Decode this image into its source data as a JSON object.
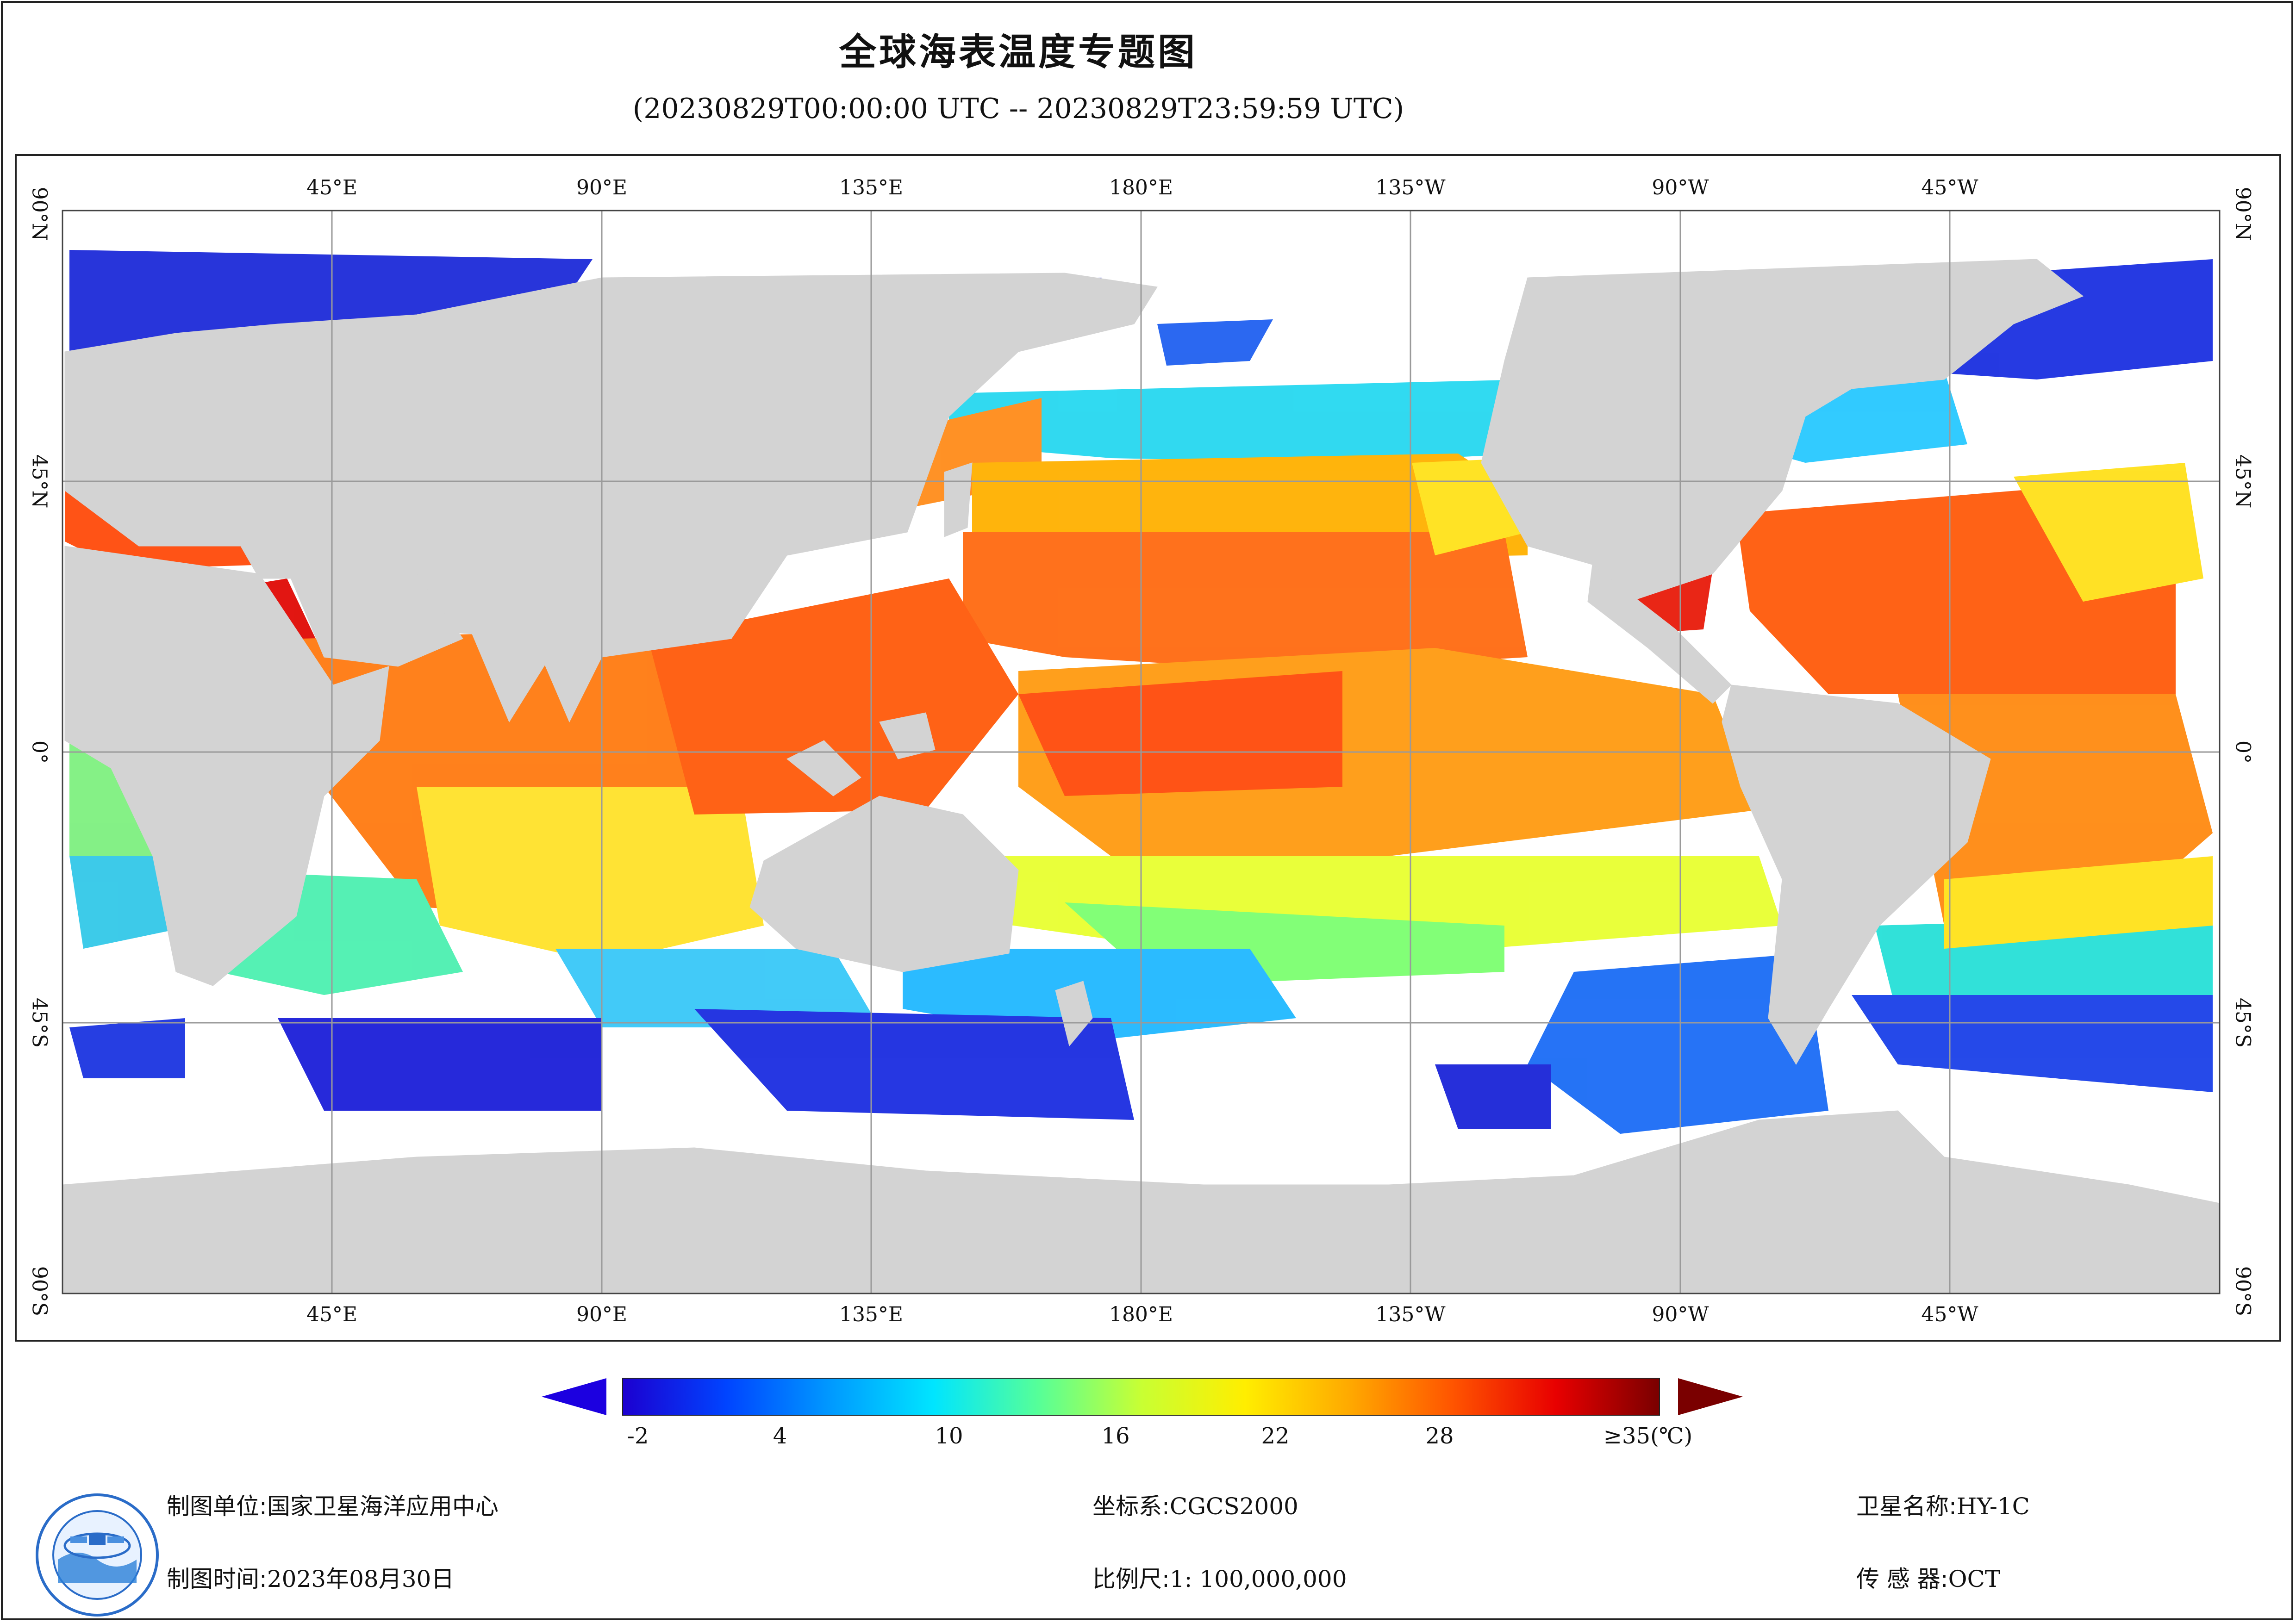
{
  "title": "全球海表温度专题图",
  "subtitle": "(20230829T00:00:00 UTC -- 20230829T23:59:59 UTC)",
  "map": {
    "lon_labels_top": [
      "45°E",
      "90°E",
      "135°E",
      "180°E",
      "135°W",
      "90°W",
      "45°W"
    ],
    "lon_labels_bottom": [
      "45°E",
      "90°E",
      "135°E",
      "180°E",
      "135°W",
      "90°W",
      "45°W"
    ],
    "lat_labels_left": [
      "90°N",
      "45°N",
      "0°",
      "45°S",
      "90°S"
    ],
    "lat_labels_right": [
      "90°N",
      "45°N",
      "0°",
      "45°S",
      "90°S"
    ],
    "colors": {
      "land": "#d3d3d3",
      "no_data": "#ffffff",
      "grid": "#9a9a9a"
    }
  },
  "colorbar": {
    "unit": "(℃)",
    "min": -2,
    "max": 35,
    "tick_labels": [
      "-2",
      "4",
      "10",
      "16",
      "22",
      "28",
      "≥35(℃)"
    ],
    "colors": [
      "#1c00d0",
      "#0044ff",
      "#0099ff",
      "#00e5ff",
      "#55ff99",
      "#c8ff33",
      "#ffee00",
      "#ffaa00",
      "#ff5500",
      "#e80000",
      "#7a0000"
    ],
    "under_color": "#1c00e0",
    "over_color": "#7a0000"
  },
  "footer": {
    "unit_label": "制图单位:",
    "unit_value": "国家卫星海洋应用中心",
    "time_label": "制图时间:",
    "time_value": "2023年08月30日",
    "crs_label": "坐标系:",
    "crs_value": "CGCS2000",
    "scale_label": "比例尺:",
    "scale_value": "1: 100,000,000",
    "satellite_label": "卫星名称:",
    "satellite_value": "HY-1C",
    "sensor_label": "传 感 器:",
    "sensor_value": "OCT"
  },
  "logo": {
    "icon": "nsoas-logo-icon"
  }
}
